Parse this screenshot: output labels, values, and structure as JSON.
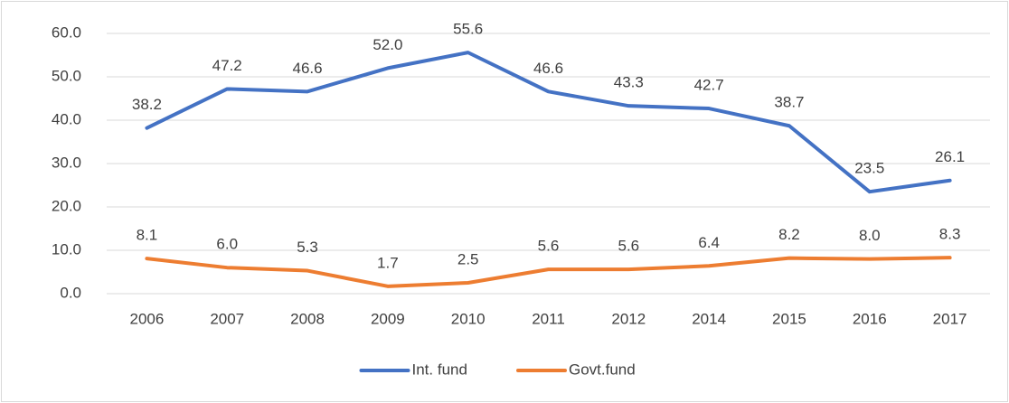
{
  "chart_data": {
    "type": "line",
    "categories": [
      "2006",
      "2007",
      "2008",
      "2009",
      "2010",
      "2011",
      "2012",
      "2014",
      "2015",
      "2016",
      "2017"
    ],
    "series": [
      {
        "name": "Int. fund",
        "color": "#4472c4",
        "values": [
          38.2,
          47.2,
          46.6,
          52.0,
          55.6,
          46.6,
          43.3,
          42.7,
          38.7,
          23.5,
          26.1
        ],
        "value_labels": [
          "38.2",
          "47.2",
          "46.6",
          "52.0",
          "55.6",
          "46.6",
          "43.3",
          "42.7",
          "38.7",
          "23.5",
          "26.1"
        ]
      },
      {
        "name": "Govt.fund",
        "color": "#ed7d31",
        "values": [
          8.1,
          6.0,
          5.3,
          1.7,
          2.5,
          5.6,
          5.6,
          6.4,
          8.2,
          8.0,
          8.3
        ],
        "value_labels": [
          "8.1",
          "6.0",
          "5.3",
          "1.7",
          "2.5",
          "5.6",
          "5.6",
          "6.4",
          "8.2",
          "8.0",
          "8.3"
        ]
      }
    ],
    "ylim": [
      0,
      60
    ],
    "yticks": [
      {
        "value": 0,
        "label": "0.0"
      },
      {
        "value": 10,
        "label": "10.0"
      },
      {
        "value": 20,
        "label": "20.0"
      },
      {
        "value": 30,
        "label": "30.0"
      },
      {
        "value": 40,
        "label": "40.0"
      },
      {
        "value": 50,
        "label": "50.0"
      },
      {
        "value": 60,
        "label": "60.0"
      }
    ],
    "grid": true,
    "legend": "bottom"
  }
}
